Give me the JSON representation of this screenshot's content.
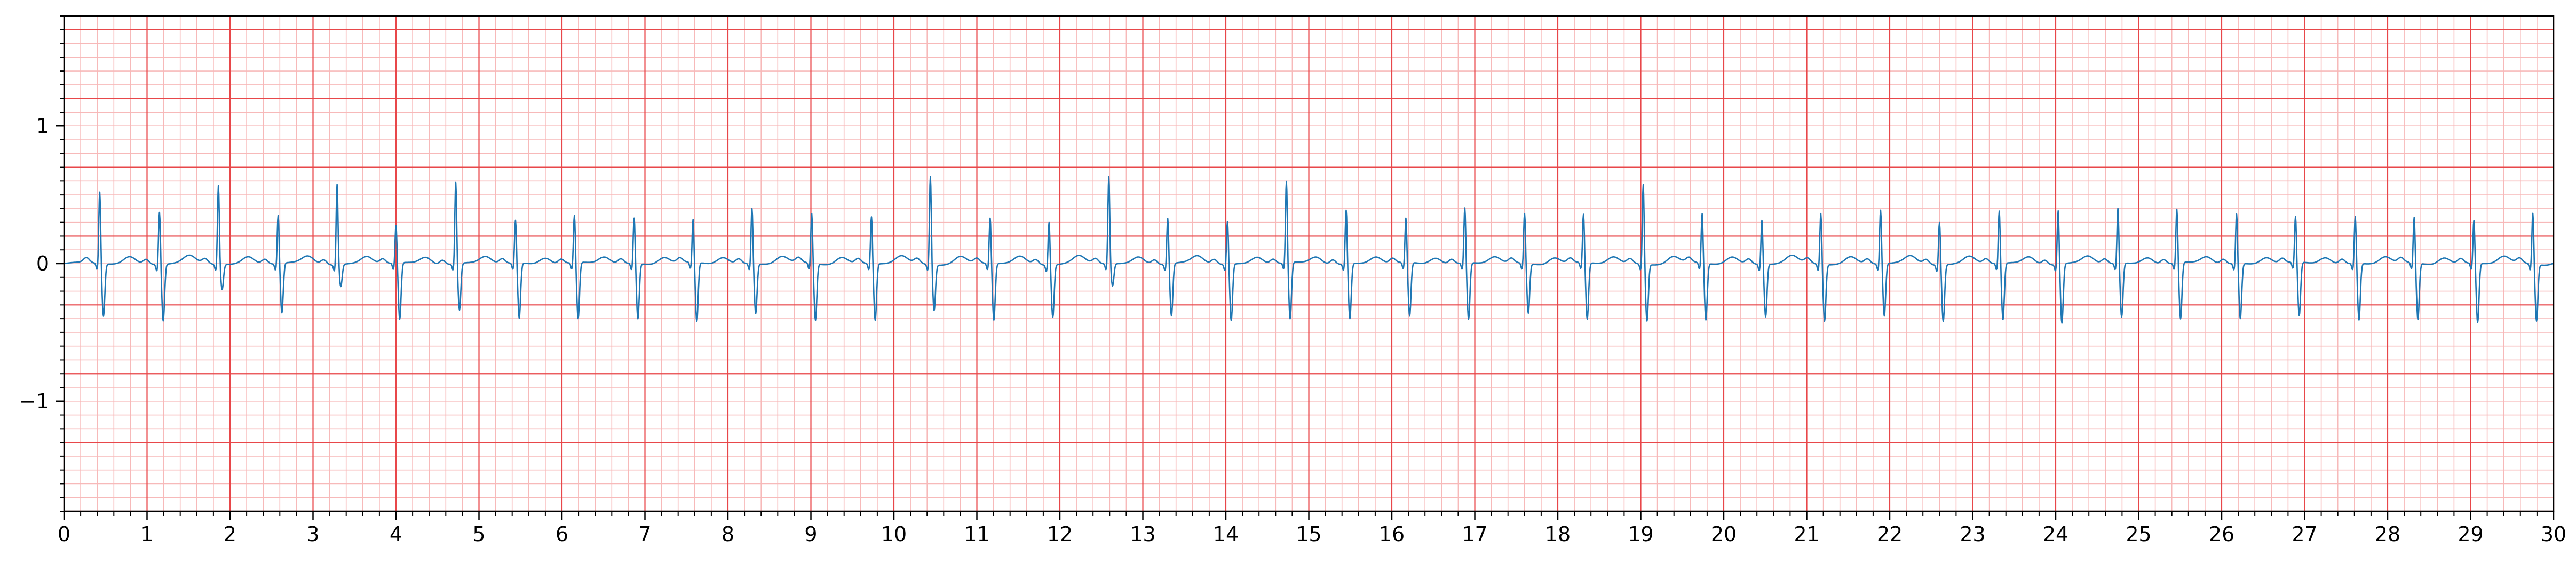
{
  "chart_data": {
    "type": "line",
    "title": "",
    "xlabel": "",
    "ylabel": "",
    "xlim": [
      0,
      30
    ],
    "ylim": [
      -1.8,
      1.8
    ],
    "x_ticks": [
      "0",
      "1",
      "2",
      "3",
      "4",
      "5",
      "6",
      "7",
      "8",
      "9",
      "10",
      "11",
      "12",
      "13",
      "14",
      "15",
      "16",
      "17",
      "18",
      "19",
      "20",
      "21",
      "22",
      "23",
      "24",
      "25",
      "26",
      "27",
      "28",
      "29",
      "30"
    ],
    "y_ticks": [
      {
        "value": 1,
        "label": "1"
      },
      {
        "value": 0,
        "label": "0"
      },
      {
        "value": -1,
        "label": "−1"
      }
    ],
    "grid": {
      "major": true,
      "minor": true,
      "major_step_x": 1,
      "minor_step_x": 0.2,
      "major_step_y": 0.5,
      "minor_step_y": 0.1
    },
    "colors": {
      "trace": "#1f77b4",
      "major_grid": "#e8474a",
      "minor_grid": "#f7b9b9",
      "axis": "#000000"
    },
    "series": [
      {
        "sampling_rate_hz": 50,
        "beat_times": [
          0.43,
          1.15,
          1.86,
          2.58,
          3.29,
          4.0,
          4.72,
          5.44,
          6.15,
          6.87,
          7.58,
          8.29,
          9.01,
          9.73,
          10.44,
          11.16,
          11.87,
          12.59,
          13.3,
          14.02,
          14.73,
          15.45,
          16.17,
          16.88,
          17.6,
          18.31,
          19.03,
          19.74,
          20.46,
          21.17,
          21.89,
          22.6,
          23.32,
          24.03,
          24.75,
          25.46,
          26.18,
          26.89,
          27.61,
          28.32,
          29.04,
          29.75
        ],
        "r_peaks": [
          0.51,
          0.37,
          0.56,
          0.34,
          0.57,
          0.26,
          0.58,
          0.3,
          0.33,
          0.32,
          0.3,
          0.39,
          0.35,
          0.33,
          0.63,
          0.32,
          0.3,
          0.62,
          0.32,
          0.3,
          0.58,
          0.38,
          0.31,
          0.39,
          0.35,
          0.34,
          0.57,
          0.35,
          0.31,
          0.36,
          0.38,
          0.3,
          0.37,
          0.38,
          0.39,
          0.38,
          0.35,
          0.32,
          0.33,
          0.32,
          0.3,
          0.36
        ],
        "s_troughs": [
          -0.37,
          -0.4,
          -0.17,
          -0.35,
          -0.15,
          -0.4,
          -0.33,
          -0.39,
          -0.4,
          -0.39,
          -0.42,
          -0.35,
          -0.4,
          -0.4,
          -0.32,
          -0.4,
          -0.37,
          -0.15,
          -0.37,
          -0.4,
          -0.4,
          -0.39,
          -0.38,
          -0.4,
          -0.35,
          -0.4,
          -0.4,
          -0.4,
          -0.37,
          -0.4,
          -0.37,
          -0.4,
          -0.4,
          -0.42,
          -0.38,
          -0.4,
          -0.39,
          -0.38,
          -0.4,
          -0.4,
          -0.42,
          -0.4
        ]
      }
    ]
  }
}
